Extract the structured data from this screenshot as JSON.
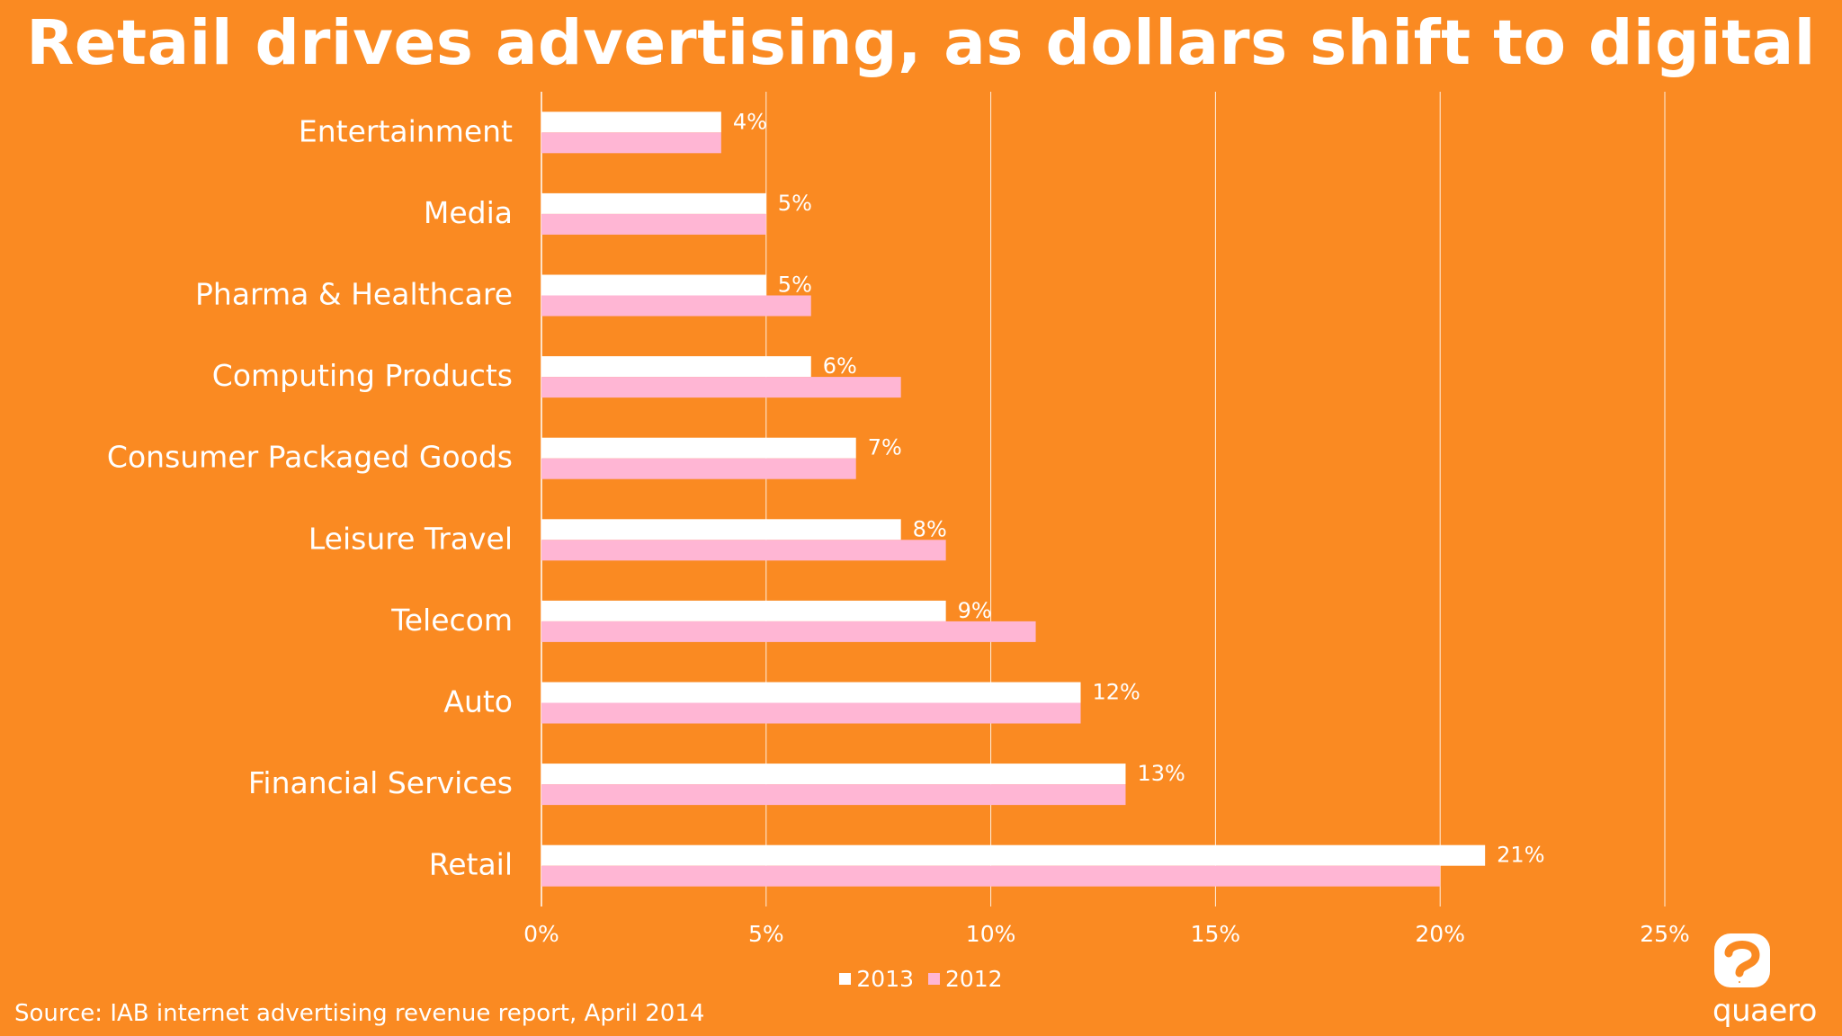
{
  "title": "Retail drives advertising, as dollars shift to digital",
  "source": "Source: IAB internet advertising revenue report, April 2014",
  "logo": {
    "text": "quaero"
  },
  "colors": {
    "background": "#fa8a22",
    "series_2013": "#ffffff",
    "series_2012": "#ffb6d4",
    "gridline": "#ffffff",
    "text": "#ffffff"
  },
  "chart_data": {
    "type": "bar",
    "orientation": "horizontal",
    "categories": [
      "Entertainment",
      "Media",
      "Pharma & Healthcare",
      "Computing Products",
      "Consumer Packaged Goods",
      "Leisure Travel",
      "Telecom",
      "Auto",
      "Financial Services",
      "Retail"
    ],
    "series": [
      {
        "name": "2013",
        "values": [
          4,
          5,
          5,
          6,
          7,
          8,
          9,
          12,
          13,
          21
        ],
        "labels": [
          "4%",
          "5%",
          "5%",
          "6%",
          "7%",
          "8%",
          "9%",
          "12%",
          "13%",
          "21%"
        ]
      },
      {
        "name": "2012",
        "values": [
          4,
          5,
          6,
          8,
          7,
          9,
          11,
          12,
          13,
          20
        ]
      }
    ],
    "xlim": [
      0,
      25
    ],
    "xticks": [
      0,
      5,
      10,
      15,
      20,
      25
    ],
    "xtick_labels": [
      "0%",
      "5%",
      "10%",
      "15%",
      "20%",
      "25%"
    ],
    "grid": true,
    "legend": "bottom"
  }
}
